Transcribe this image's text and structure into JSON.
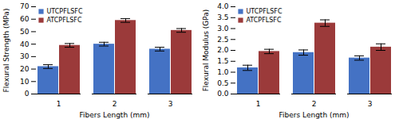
{
  "chart_data": [
    {
      "type": "bar",
      "categories": [
        1,
        2,
        3
      ],
      "xlabel": "Fibers Length (mm)",
      "ylabel": "Flexural Strength (MPa)",
      "series": [
        {
          "name": "UTCPFLSFC",
          "color": "#4472C4",
          "values": [
            22,
            40,
            36
          ],
          "errors": [
            1.5,
            1.5,
            1.5
          ]
        },
        {
          "name": "ATCPFLSFC",
          "color": "#9B3A3A",
          "values": [
            39,
            59,
            51
          ],
          "errors": [
            1.5,
            1.5,
            1.5
          ]
        }
      ],
      "ylim": [
        0,
        70
      ],
      "yticks": [
        0,
        10,
        20,
        30,
        40,
        50,
        60,
        70
      ],
      "xticks": [
        1,
        2,
        3
      ],
      "legend": "upper left"
    },
    {
      "type": "bar",
      "categories": [
        1,
        2,
        3
      ],
      "xlabel": "Fibers Length (mm)",
      "ylabel": "Flexural Modulus (GPa)",
      "series": [
        {
          "name": "UTCPFLSFC",
          "color": "#4472C4",
          "values": [
            1.2,
            1.9,
            1.65
          ],
          "errors": [
            0.12,
            0.12,
            0.1
          ]
        },
        {
          "name": "ATCPFLSFC",
          "color": "#9B3A3A",
          "values": [
            1.95,
            3.25,
            2.15
          ],
          "errors": [
            0.1,
            0.15,
            0.15
          ]
        }
      ],
      "ylim": [
        0,
        4
      ],
      "yticks": [
        {
          "value": 0,
          "label": "0.0"
        },
        0.5,
        {
          "value": 1.0,
          "label": "1.0"
        },
        1.5,
        {
          "value": 2.0,
          "label": "2.0"
        },
        2.5,
        {
          "value": 3.0,
          "label": "3.0"
        },
        3.5,
        {
          "value": 4.0,
          "label": "4.0"
        }
      ],
      "xticks": [
        1,
        2,
        3
      ],
      "legend": "upper left"
    }
  ]
}
